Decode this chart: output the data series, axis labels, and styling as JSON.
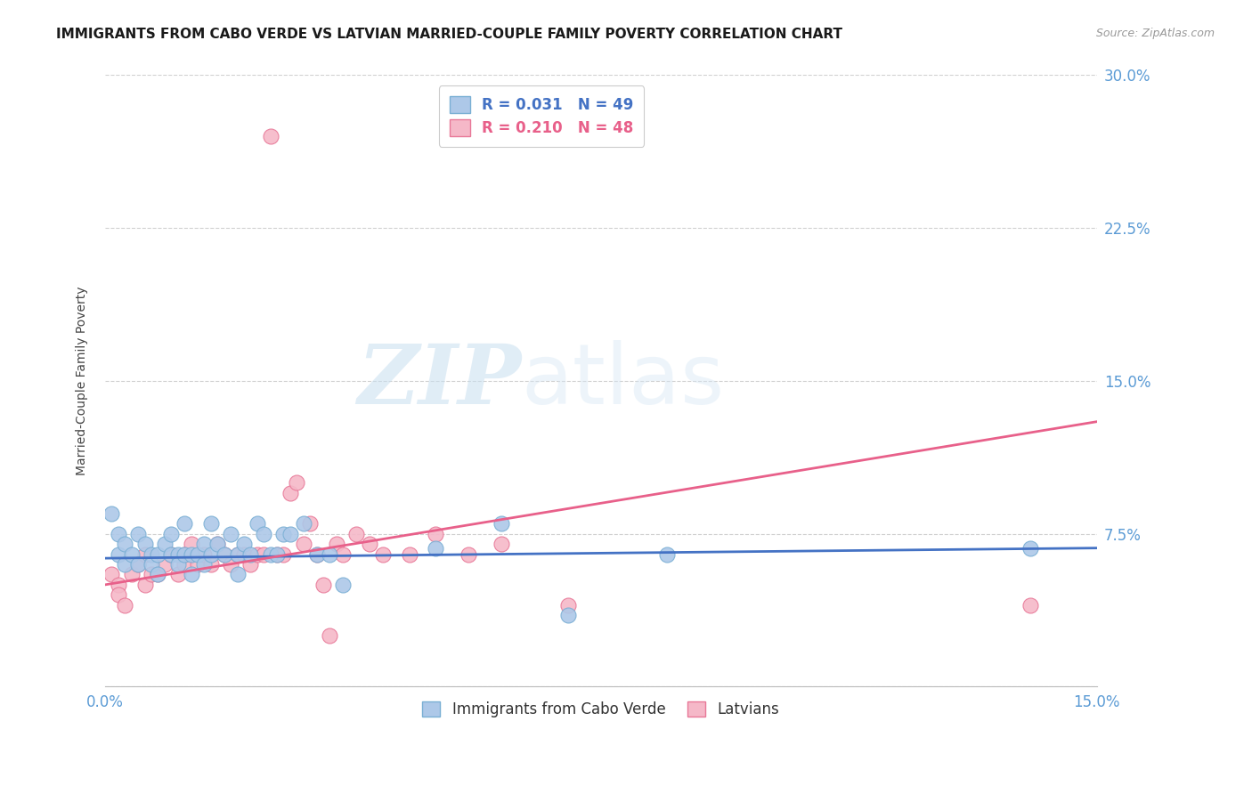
{
  "title": "IMMIGRANTS FROM CABO VERDE VS LATVIAN MARRIED-COUPLE FAMILY POVERTY CORRELATION CHART",
  "source": "Source: ZipAtlas.com",
  "ylabel": "Married-Couple Family Poverty",
  "xlim": [
    0.0,
    0.15
  ],
  "ylim": [
    0.0,
    0.3
  ],
  "yticks": [
    0.0,
    0.075,
    0.15,
    0.225,
    0.3
  ],
  "series1_label": "Immigrants from Cabo Verde",
  "series1_color": "#adc8e8",
  "series1_edge_color": "#7aafd4",
  "series1_R": 0.031,
  "series1_N": 49,
  "series1_line_color": "#4472c4",
  "series2_label": "Latvians",
  "series2_color": "#f5b8c8",
  "series2_edge_color": "#e87898",
  "series2_R": 0.21,
  "series2_N": 48,
  "series2_line_color": "#e8608a",
  "watermark_zip": "ZIP",
  "watermark_atlas": "atlas",
  "background_color": "#ffffff",
  "grid_color": "#d0d0d0",
  "axis_label_color": "#5b9bd5",
  "title_fontsize": 11,
  "scatter1_x": [
    0.001,
    0.002,
    0.002,
    0.003,
    0.003,
    0.004,
    0.005,
    0.005,
    0.006,
    0.007,
    0.007,
    0.008,
    0.008,
    0.009,
    0.01,
    0.01,
    0.011,
    0.011,
    0.012,
    0.012,
    0.013,
    0.013,
    0.014,
    0.015,
    0.015,
    0.016,
    0.016,
    0.017,
    0.018,
    0.019,
    0.02,
    0.02,
    0.021,
    0.022,
    0.023,
    0.024,
    0.025,
    0.026,
    0.027,
    0.028,
    0.03,
    0.032,
    0.034,
    0.036,
    0.05,
    0.06,
    0.07,
    0.085,
    0.14
  ],
  "scatter1_y": [
    0.085,
    0.075,
    0.065,
    0.07,
    0.06,
    0.065,
    0.075,
    0.06,
    0.07,
    0.065,
    0.06,
    0.065,
    0.055,
    0.07,
    0.065,
    0.075,
    0.065,
    0.06,
    0.08,
    0.065,
    0.065,
    0.055,
    0.065,
    0.06,
    0.07,
    0.065,
    0.08,
    0.07,
    0.065,
    0.075,
    0.065,
    0.055,
    0.07,
    0.065,
    0.08,
    0.075,
    0.065,
    0.065,
    0.075,
    0.075,
    0.08,
    0.065,
    0.065,
    0.05,
    0.068,
    0.08,
    0.035,
    0.065,
    0.068
  ],
  "scatter2_x": [
    0.001,
    0.002,
    0.002,
    0.003,
    0.004,
    0.005,
    0.006,
    0.006,
    0.007,
    0.008,
    0.009,
    0.01,
    0.011,
    0.012,
    0.012,
    0.013,
    0.014,
    0.015,
    0.016,
    0.017,
    0.018,
    0.019,
    0.02,
    0.021,
    0.022,
    0.023,
    0.024,
    0.025,
    0.026,
    0.027,
    0.028,
    0.029,
    0.03,
    0.031,
    0.032,
    0.033,
    0.034,
    0.035,
    0.036,
    0.038,
    0.04,
    0.042,
    0.046,
    0.05,
    0.055,
    0.06,
    0.07,
    0.14
  ],
  "scatter2_y": [
    0.055,
    0.05,
    0.045,
    0.04,
    0.055,
    0.06,
    0.05,
    0.065,
    0.055,
    0.055,
    0.06,
    0.065,
    0.055,
    0.065,
    0.06,
    0.07,
    0.06,
    0.065,
    0.06,
    0.07,
    0.065,
    0.06,
    0.065,
    0.065,
    0.06,
    0.065,
    0.065,
    0.27,
    0.065,
    0.065,
    0.095,
    0.1,
    0.07,
    0.08,
    0.065,
    0.05,
    0.025,
    0.07,
    0.065,
    0.075,
    0.07,
    0.065,
    0.065,
    0.075,
    0.065,
    0.07,
    0.04,
    0.04
  ],
  "line1_x0": 0.0,
  "line1_y0": 0.063,
  "line1_x1": 0.15,
  "line1_y1": 0.068,
  "line2_x0": 0.0,
  "line2_y0": 0.05,
  "line2_x1": 0.15,
  "line2_y1": 0.13
}
